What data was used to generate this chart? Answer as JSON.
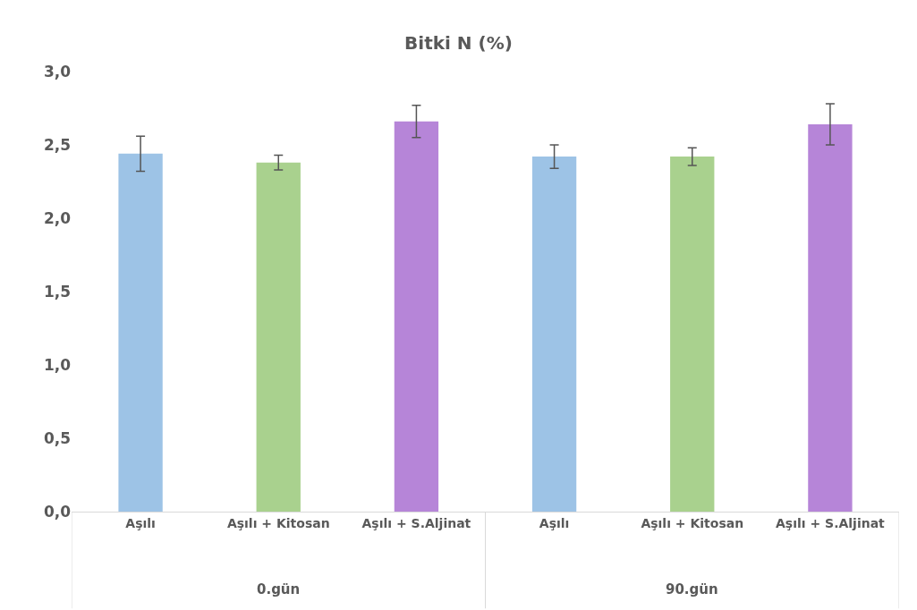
{
  "chart_data": {
    "type": "bar",
    "title": "Bitki N (%)",
    "categories": [
      "Aşılı",
      "Aşılı + Kitosan",
      "Aşılı + S.Aljinat",
      "Aşılı",
      "Aşılı + Kitosan",
      "Aşılı + S.Aljinat"
    ],
    "values": [
      2.44,
      2.38,
      2.66,
      2.42,
      2.42,
      2.64
    ],
    "errors": [
      0.12,
      0.05,
      0.11,
      0.08,
      0.06,
      0.14
    ],
    "colors": [
      "#9dc3e6",
      "#a9d18e",
      "#b685d8",
      "#9dc3e6",
      "#a9d18e",
      "#b685d8"
    ],
    "ylim": [
      0,
      3
    ],
    "yticks": [
      {
        "value": 0,
        "label": "0,0"
      },
      {
        "value": 0.5,
        "label": "0,5"
      },
      {
        "value": 1,
        "label": "1,0"
      },
      {
        "value": 1.5,
        "label": "1,5"
      },
      {
        "value": 2,
        "label": "2,0"
      },
      {
        "value": 2.5,
        "label": "2,5"
      },
      {
        "value": 3,
        "label": "3,0"
      }
    ],
    "annotations": [
      "0.gün",
      "90.gün"
    ]
  }
}
